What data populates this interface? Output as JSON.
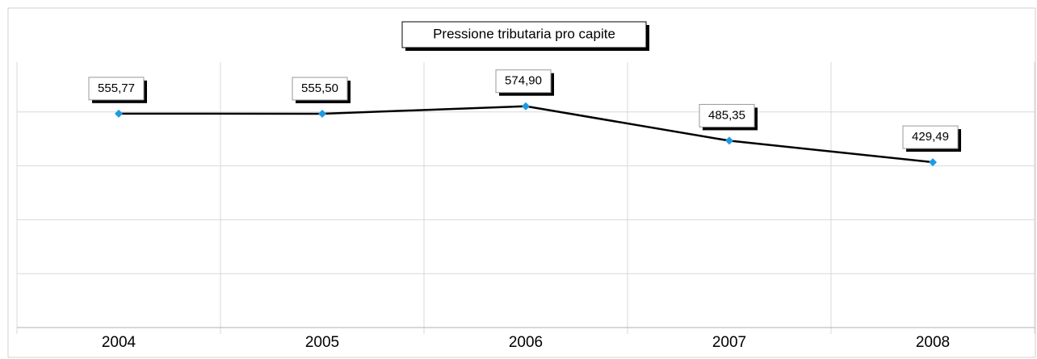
{
  "chart_data": {
    "type": "line",
    "title": "Pressione tributaria pro capite",
    "categories": [
      "2004",
      "2005",
      "2006",
      "2007",
      "2008"
    ],
    "series": [
      {
        "name": "Pressione tributaria pro capite",
        "color": "#000000",
        "marker_color": "#1e9be0",
        "values": [
          555.77,
          555.5,
          574.9,
          485.35,
          429.49
        ],
        "value_labels": [
          "555,77",
          "555,50",
          "574,90",
          "485,35",
          "429,49"
        ]
      }
    ],
    "ylim": [
      0,
      700
    ],
    "yticks": [
      0,
      140,
      280,
      420,
      560,
      700
    ],
    "grid": true
  }
}
